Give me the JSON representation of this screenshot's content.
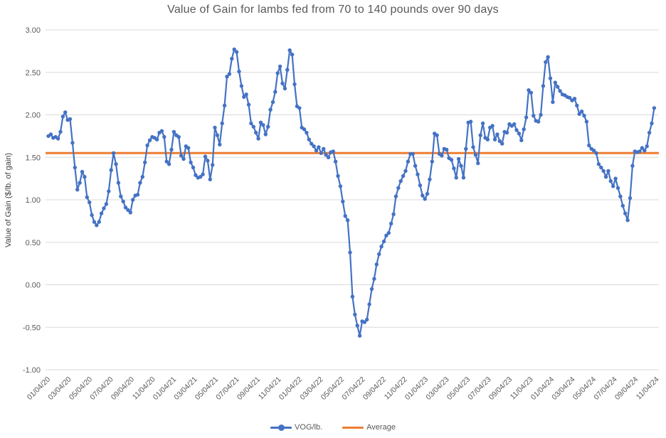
{
  "chart_data": {
    "type": "line",
    "title": "Value of Gain for lambs fed from 70 to 140 pounds over 90 days",
    "xlabel": "",
    "ylabel": "Value of Gain ($/lb. of gain)",
    "ylim": [
      -1.0,
      3.0
    ],
    "ytick_step": 0.5,
    "ytick_labels": [
      "3.00",
      "2.50",
      "2.00",
      "1.50",
      "1.00",
      "0.50",
      "0.00",
      "-0.50",
      "-1.00"
    ],
    "x_tick_labels": [
      "01/04/20",
      "03/04/20",
      "05/04/20",
      "07/04/20",
      "09/04/20",
      "11/04/20",
      "01/04/21",
      "03/04/21",
      "05/04/21",
      "07/04/21",
      "09/04/21",
      "11/04/21",
      "01/04/22",
      "03/04/22",
      "05/04/22",
      "07/04/22",
      "09/04/22",
      "11/04/22",
      "01/04/23",
      "03/04/23",
      "05/04/23",
      "07/04/23",
      "09/04/23",
      "11/04/23",
      "01/04/24",
      "03/04/24",
      "05/04/24",
      "07/04/24",
      "09/04/24",
      "11/04/24"
    ],
    "x_start_date": "01/04/20",
    "x_interval": "weekly",
    "points": 252,
    "grid": "horizontal",
    "legend_position": "bottom",
    "series": [
      {
        "name": "VOG/lb.",
        "color": "#4472C4",
        "marker": "circle",
        "values": [
          1.75,
          1.77,
          1.73,
          1.74,
          1.72,
          1.8,
          1.98,
          2.03,
          1.94,
          1.95,
          1.67,
          1.38,
          1.12,
          1.2,
          1.33,
          1.27,
          1.03,
          0.97,
          0.82,
          0.74,
          0.7,
          0.74,
          0.84,
          0.9,
          0.95,
          1.1,
          1.35,
          1.55,
          1.42,
          1.2,
          1.04,
          0.98,
          0.91,
          0.88,
          0.85,
          1.0,
          1.05,
          1.06,
          1.2,
          1.27,
          1.44,
          1.64,
          1.7,
          1.74,
          1.73,
          1.71,
          1.79,
          1.81,
          1.74,
          1.45,
          1.42,
          1.59,
          1.8,
          1.76,
          1.74,
          1.52,
          1.48,
          1.63,
          1.61,
          1.44,
          1.38,
          1.29,
          1.26,
          1.27,
          1.3,
          1.51,
          1.46,
          1.24,
          1.41,
          1.85,
          1.76,
          1.65,
          1.9,
          2.11,
          2.45,
          2.48,
          2.66,
          2.77,
          2.74,
          2.51,
          2.34,
          2.21,
          2.24,
          2.12,
          1.9,
          1.86,
          1.79,
          1.72,
          1.91,
          1.88,
          1.77,
          1.86,
          2.06,
          2.15,
          2.27,
          2.49,
          2.57,
          2.37,
          2.31,
          2.53,
          2.76,
          2.71,
          2.36,
          2.1,
          2.08,
          1.85,
          1.83,
          1.79,
          1.71,
          1.66,
          1.63,
          1.58,
          1.62,
          1.55,
          1.6,
          1.53,
          1.5,
          1.56,
          1.57,
          1.45,
          1.28,
          1.16,
          0.98,
          0.81,
          0.76,
          0.38,
          -0.14,
          -0.35,
          -0.48,
          -0.6,
          -0.43,
          -0.44,
          -0.41,
          -0.23,
          -0.05,
          0.07,
          0.24,
          0.36,
          0.45,
          0.51,
          0.58,
          0.61,
          0.72,
          0.83,
          1.04,
          1.14,
          1.22,
          1.28,
          1.34,
          1.45,
          1.54,
          1.54,
          1.4,
          1.3,
          1.17,
          1.05,
          1.01,
          1.07,
          1.24,
          1.45,
          1.78,
          1.76,
          1.54,
          1.52,
          1.6,
          1.59,
          1.49,
          1.47,
          1.37,
          1.26,
          1.48,
          1.4,
          1.26,
          1.6,
          1.91,
          1.92,
          1.62,
          1.53,
          1.43,
          1.76,
          1.9,
          1.73,
          1.71,
          1.85,
          1.87,
          1.71,
          1.77,
          1.69,
          1.66,
          1.8,
          1.79,
          1.89,
          1.87,
          1.89,
          1.82,
          1.78,
          1.7,
          1.83,
          1.97,
          2.29,
          2.26,
          1.99,
          1.93,
          1.92,
          2.0,
          2.34,
          2.62,
          2.68,
          2.43,
          2.15,
          2.38,
          2.33,
          2.28,
          2.24,
          2.23,
          2.21,
          2.2,
          2.17,
          2.19,
          2.11,
          2.01,
          2.04,
          1.99,
          1.92,
          1.64,
          1.6,
          1.58,
          1.55,
          1.42,
          1.38,
          1.34,
          1.27,
          1.34,
          1.22,
          1.16,
          1.25,
          1.14,
          1.04,
          0.93,
          0.84,
          0.76,
          1.02,
          1.4,
          1.57,
          1.56,
          1.57,
          1.61,
          1.58,
          1.63,
          1.79,
          1.9,
          2.08
        ]
      },
      {
        "name": "Average",
        "color": "#ED7D31",
        "type": "constant-line",
        "value": 1.55
      }
    ]
  },
  "style": {
    "grid_color": "#D9D9D9",
    "tick_label_color": "#595959",
    "title_color": "#595959",
    "axis_title_color": "#404040",
    "background": "#FFFFFF"
  }
}
